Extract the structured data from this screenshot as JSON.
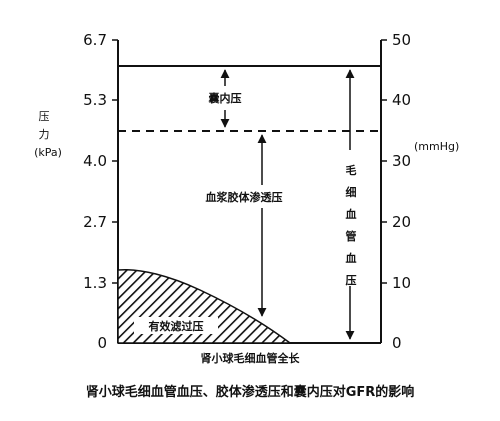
{
  "diagram": {
    "left_axis": {
      "title_chars": [
        "压",
        "力"
      ],
      "unit": "(kPa)",
      "ticks": [
        "6.7",
        "5.3",
        "4.0",
        "2.7",
        "1.3",
        "0"
      ]
    },
    "right_axis": {
      "unit": "(mmHg)",
      "ticks": [
        "50",
        "40",
        "30",
        "20",
        "10",
        "0"
      ]
    },
    "x_label": "肾小球毛细血管全长",
    "capsule_pressure": "囊内压",
    "plasma_oncotic_pressure": "血浆胶体渗透压",
    "capillary_pressure_chars": [
      "毛",
      "细",
      "血",
      "管",
      "血",
      "压"
    ],
    "effective_filtration": "有效滤过压"
  },
  "caption": "肾小球毛细血管血压、胶体渗透压和囊内压对GFR的影响"
}
